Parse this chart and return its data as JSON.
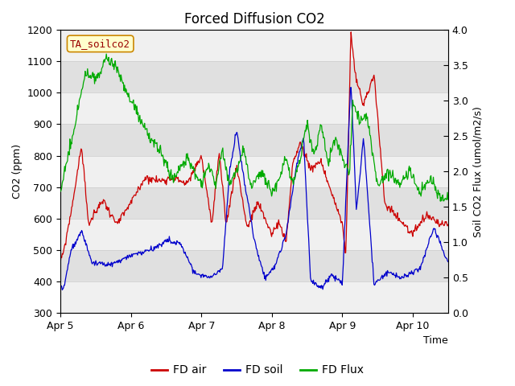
{
  "title": "Forced Diffusion CO2",
  "xlabel": "Time",
  "ylabel_left": "CO2 (ppm)",
  "ylabel_right": "Soil CO2 Flux (umol/m2/s)",
  "ylim_left": [
    300,
    1200
  ],
  "ylim_right": [
    0.0,
    4.0
  ],
  "xtick_labels": [
    "Apr 5",
    "Apr 6",
    "Apr 7",
    "Apr 8",
    "Apr 9",
    "Apr 10"
  ],
  "legend_label": "TA_soilco2",
  "line_colors": {
    "fd_air": "#cc0000",
    "fd_soil": "#0000cc",
    "fd_flux": "#00aa00"
  },
  "legend_entries": [
    "FD air",
    "FD soil",
    "FD Flux"
  ],
  "fig_bg": "#ffffff",
  "plot_bg": "#ffffff",
  "band_light": "#f0f0f0",
  "band_dark": "#e0e0e0",
  "title_fontsize": 12,
  "label_fontsize": 9,
  "tick_fontsize": 9
}
